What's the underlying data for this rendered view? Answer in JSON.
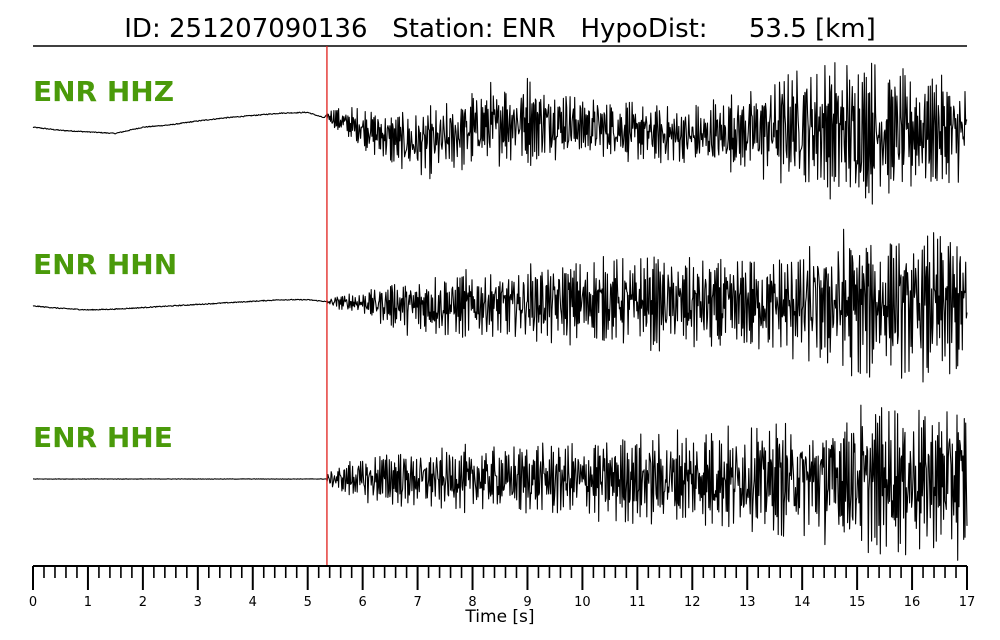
{
  "title": "ID: 251207090136   Station: ENR   HypoDist:     53.5 [km]",
  "colors": {
    "label": "#4a9a0a",
    "pick": "#e0201c",
    "trace": "#000000"
  },
  "chart_data": {
    "type": "line",
    "title": "ID: 251207090136   Station: ENR   HypoDist:     53.5 [km]",
    "xlabel": "Time [s]",
    "ylabel": "",
    "xlim": [
      0,
      17
    ],
    "x_major_ticks": [
      0,
      1,
      2,
      3,
      4,
      5,
      6,
      7,
      8,
      9,
      10,
      11,
      12,
      13,
      14,
      15,
      16,
      17
    ],
    "x_tick_labels": [
      "0",
      "1",
      "2",
      "3",
      "4",
      "5",
      "6",
      "7",
      "8",
      "9",
      "10",
      "11",
      "12",
      "13",
      "14",
      "15",
      "16",
      "17"
    ],
    "x_minor_tick_step": 0.2,
    "pick_time": 5.35,
    "grid": false,
    "series": [
      {
        "name": "ENR HHZ",
        "x": [
          0,
          0.5,
          1,
          1.5,
          2,
          2.5,
          3,
          3.5,
          4,
          4.5,
          5,
          5.3,
          5.35,
          5.5,
          6,
          6.5,
          7,
          7.5,
          8,
          8.5,
          9,
          9.5,
          10,
          10.5,
          11,
          11.5,
          12,
          12.5,
          13,
          13.5,
          14,
          14.5,
          15,
          15.5,
          16,
          16.5,
          17
        ],
        "baseline": [
          0.1,
          0.06,
          0.04,
          0.02,
          0.1,
          0.13,
          0.18,
          0.22,
          0.25,
          0.28,
          0.29,
          0.22,
          0.25,
          0.2,
          0.08,
          -0.04,
          -0.12,
          -0.06,
          0.08,
          0.15,
          0.18,
          0.16,
          0.12,
          0.08,
          0.04,
          0.0,
          -0.02,
          0.0,
          0.04,
          0.08,
          0.12,
          0.08,
          0.04,
          0.02,
          0.04,
          0.06,
          0.02
        ],
        "envelope": [
          0.02,
          0.02,
          0.02,
          0.02,
          0.02,
          0.02,
          0.02,
          0.02,
          0.02,
          0.02,
          0.02,
          0.02,
          0.05,
          0.15,
          0.25,
          0.35,
          0.42,
          0.45,
          0.48,
          0.52,
          0.55,
          0.5,
          0.42,
          0.4,
          0.38,
          0.38,
          0.4,
          0.45,
          0.55,
          0.7,
          0.8,
          0.85,
          0.95,
          0.8,
          0.75,
          0.7,
          0.7
        ]
      },
      {
        "name": "ENR HHN",
        "x": [
          0,
          0.5,
          1,
          1.5,
          2,
          2.5,
          3,
          3.5,
          4,
          4.5,
          5,
          5.3,
          5.35,
          5.5,
          6,
          6.5,
          7,
          7.5,
          8,
          8.5,
          9,
          9.5,
          10,
          10.5,
          11,
          11.5,
          12,
          12.5,
          13,
          13.5,
          14,
          14.5,
          15,
          15.5,
          16,
          16.5,
          17
        ],
        "baseline": [
          0.0,
          -0.03,
          -0.05,
          -0.04,
          -0.02,
          0.0,
          0.02,
          0.04,
          0.06,
          0.08,
          0.08,
          0.06,
          0.05,
          0.05,
          0.04,
          0.02,
          0.0,
          0.0,
          0.02,
          0.02,
          0.04,
          0.04,
          0.06,
          0.06,
          0.06,
          0.04,
          0.04,
          0.02,
          0.02,
          0.02,
          0.0,
          0.02,
          0.02,
          0.02,
          0.0,
          0.02,
          0.0
        ],
        "envelope": [
          0.02,
          0.02,
          0.02,
          0.02,
          0.02,
          0.02,
          0.02,
          0.02,
          0.02,
          0.02,
          0.02,
          0.02,
          0.03,
          0.08,
          0.15,
          0.28,
          0.38,
          0.4,
          0.42,
          0.45,
          0.48,
          0.5,
          0.52,
          0.52,
          0.55,
          0.55,
          0.58,
          0.6,
          0.6,
          0.6,
          0.75,
          0.85,
          0.95,
          0.8,
          0.85,
          0.95,
          1.0
        ]
      },
      {
        "name": "ENR HHE",
        "x": [
          0,
          0.5,
          1,
          1.5,
          2,
          2.5,
          3,
          3.5,
          4,
          4.5,
          5,
          5.3,
          5.35,
          5.5,
          6,
          6.5,
          7,
          7.5,
          8,
          8.5,
          9,
          9.5,
          10,
          10.5,
          11,
          11.5,
          12,
          12.5,
          13,
          13.5,
          14,
          14.5,
          15,
          15.5,
          16,
          16.5,
          17
        ],
        "baseline": [
          0.0,
          0.0,
          0.0,
          0.0,
          0.0,
          0.0,
          0.0,
          0.0,
          0.0,
          0.0,
          0.0,
          0.0,
          0.0,
          0.0,
          0.0,
          0.0,
          0.0,
          0.0,
          0.0,
          0.0,
          0.0,
          0.0,
          0.0,
          0.0,
          0.0,
          0.0,
          0.0,
          0.0,
          0.0,
          0.0,
          0.0,
          0.0,
          0.0,
          0.0,
          0.0,
          0.0,
          0.0
        ],
        "envelope": [
          0.01,
          0.01,
          0.01,
          0.01,
          0.01,
          0.01,
          0.01,
          0.01,
          0.01,
          0.01,
          0.01,
          0.01,
          0.05,
          0.15,
          0.3,
          0.38,
          0.38,
          0.38,
          0.42,
          0.42,
          0.45,
          0.48,
          0.5,
          0.52,
          0.55,
          0.58,
          0.6,
          0.65,
          0.68,
          0.7,
          0.75,
          0.85,
          0.9,
          0.9,
          0.95,
          0.95,
          1.0
        ]
      }
    ]
  }
}
